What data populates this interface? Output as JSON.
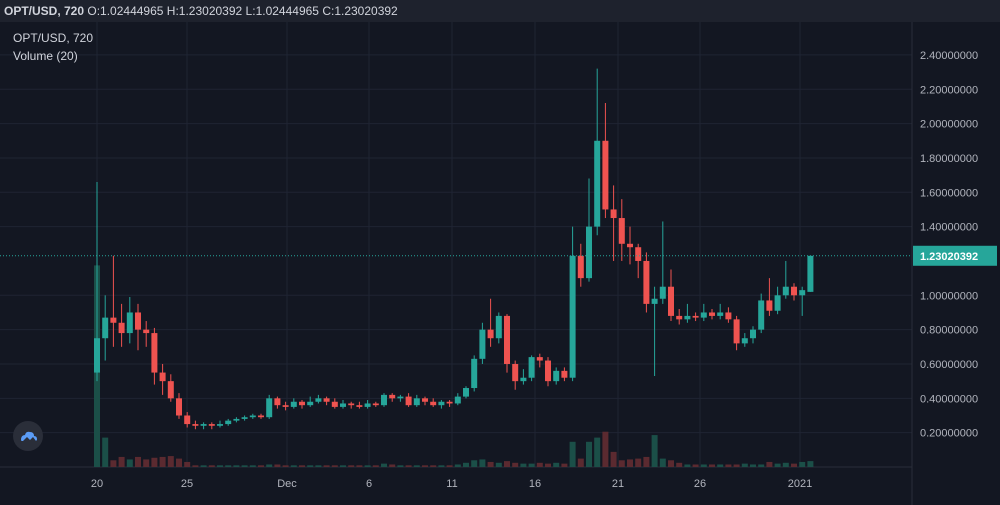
{
  "header": {
    "symbol": "OPT/USD, 720",
    "o_label": "O:",
    "o_value": "1.02444965",
    "h_label": "H:",
    "h_value": "1.23020392",
    "l_label": "L:",
    "l_value": "1.02444965",
    "c_label": "C:",
    "c_value": "1.23020392"
  },
  "legend": {
    "title": "OPT/USD, 720",
    "volume": "Volume (20)"
  },
  "price_tag": "1.23020392",
  "colors": {
    "up": "#26a69a",
    "down": "#ef5350",
    "bg": "#131722",
    "grid": "#1f2433",
    "text": "#b2b5be"
  },
  "chart_data": {
    "type": "candlestick",
    "y_ticks": [
      "2.40000000",
      "2.20000000",
      "2.00000000",
      "1.80000000",
      "1.60000000",
      "1.40000000",
      "1.00000000",
      "0.80000000",
      "0.60000000",
      "0.40000000",
      "0.20000000"
    ],
    "x_ticks": [
      "20",
      "25",
      "Dec",
      "6",
      "11",
      "16",
      "21",
      "26",
      "2021"
    ],
    "ylim": [
      0,
      2.55
    ],
    "last_price": 1.23020392,
    "candles": [
      [
        0.55,
        0.75,
        0.5,
        1.66
      ],
      [
        0.75,
        0.87,
        0.62,
        1.0
      ],
      [
        0.87,
        0.84,
        0.7,
        1.23
      ],
      [
        0.84,
        0.78,
        0.7,
        0.95
      ],
      [
        0.78,
        0.9,
        0.72,
        0.99
      ],
      [
        0.9,
        0.8,
        0.68,
        0.95
      ],
      [
        0.8,
        0.78,
        0.7,
        0.85
      ],
      [
        0.78,
        0.55,
        0.48,
        0.81
      ],
      [
        0.55,
        0.5,
        0.42,
        0.6
      ],
      [
        0.5,
        0.4,
        0.38,
        0.54
      ],
      [
        0.4,
        0.3,
        0.28,
        0.43
      ],
      [
        0.3,
        0.25,
        0.23,
        0.32
      ],
      [
        0.25,
        0.24,
        0.22,
        0.27
      ],
      [
        0.24,
        0.25,
        0.22,
        0.26
      ],
      [
        0.25,
        0.24,
        0.22,
        0.26
      ],
      [
        0.24,
        0.25,
        0.23,
        0.27
      ],
      [
        0.25,
        0.27,
        0.24,
        0.28
      ],
      [
        0.27,
        0.28,
        0.26,
        0.29
      ],
      [
        0.28,
        0.29,
        0.27,
        0.3
      ],
      [
        0.29,
        0.3,
        0.28,
        0.31
      ],
      [
        0.3,
        0.29,
        0.28,
        0.31
      ],
      [
        0.29,
        0.4,
        0.28,
        0.42
      ],
      [
        0.4,
        0.36,
        0.34,
        0.41
      ],
      [
        0.36,
        0.35,
        0.33,
        0.38
      ],
      [
        0.35,
        0.38,
        0.34,
        0.4
      ],
      [
        0.38,
        0.36,
        0.34,
        0.39
      ],
      [
        0.36,
        0.38,
        0.35,
        0.41
      ],
      [
        0.38,
        0.4,
        0.37,
        0.42
      ],
      [
        0.4,
        0.38,
        0.36,
        0.41
      ],
      [
        0.38,
        0.35,
        0.34,
        0.4
      ],
      [
        0.35,
        0.37,
        0.34,
        0.39
      ],
      [
        0.37,
        0.36,
        0.34,
        0.38
      ],
      [
        0.36,
        0.35,
        0.34,
        0.38
      ],
      [
        0.35,
        0.37,
        0.34,
        0.39
      ],
      [
        0.37,
        0.36,
        0.35,
        0.38
      ],
      [
        0.36,
        0.42,
        0.35,
        0.43
      ],
      [
        0.42,
        0.4,
        0.38,
        0.43
      ],
      [
        0.4,
        0.41,
        0.38,
        0.42
      ],
      [
        0.41,
        0.36,
        0.35,
        0.43
      ],
      [
        0.36,
        0.4,
        0.35,
        0.42
      ],
      [
        0.4,
        0.38,
        0.36,
        0.41
      ],
      [
        0.38,
        0.36,
        0.35,
        0.4
      ],
      [
        0.36,
        0.38,
        0.34,
        0.39
      ],
      [
        0.38,
        0.37,
        0.35,
        0.39
      ],
      [
        0.37,
        0.41,
        0.36,
        0.43
      ],
      [
        0.41,
        0.46,
        0.4,
        0.47
      ],
      [
        0.46,
        0.63,
        0.44,
        0.65
      ],
      [
        0.63,
        0.8,
        0.6,
        0.84
      ],
      [
        0.8,
        0.75,
        0.7,
        0.98
      ],
      [
        0.75,
        0.88,
        0.72,
        0.9
      ],
      [
        0.88,
        0.6,
        0.55,
        0.89
      ],
      [
        0.6,
        0.5,
        0.45,
        0.62
      ],
      [
        0.5,
        0.52,
        0.48,
        0.57
      ],
      [
        0.52,
        0.64,
        0.5,
        0.65
      ],
      [
        0.64,
        0.62,
        0.58,
        0.66
      ],
      [
        0.62,
        0.5,
        0.47,
        0.64
      ],
      [
        0.5,
        0.56,
        0.48,
        0.58
      ],
      [
        0.56,
        0.52,
        0.5,
        0.58
      ],
      [
        0.52,
        1.23,
        0.5,
        1.4
      ],
      [
        1.23,
        1.1,
        1.05,
        1.3
      ],
      [
        1.1,
        1.4,
        1.08,
        1.68
      ],
      [
        1.4,
        1.9,
        1.35,
        2.32
      ],
      [
        1.9,
        1.5,
        1.45,
        2.12
      ],
      [
        1.5,
        1.45,
        1.2,
        1.64
      ],
      [
        1.45,
        1.3,
        1.2,
        1.56
      ],
      [
        1.3,
        1.28,
        1.18,
        1.4
      ],
      [
        1.28,
        1.2,
        1.1,
        1.3
      ],
      [
        1.2,
        0.95,
        0.9,
        1.25
      ],
      [
        0.95,
        0.98,
        0.53,
        1.05
      ],
      [
        0.98,
        1.05,
        0.95,
        1.43
      ],
      [
        1.05,
        0.88,
        0.85,
        1.15
      ],
      [
        0.88,
        0.86,
        0.83,
        0.92
      ],
      [
        0.86,
        0.88,
        0.84,
        0.95
      ],
      [
        0.88,
        0.87,
        0.85,
        0.9
      ],
      [
        0.87,
        0.9,
        0.85,
        0.95
      ],
      [
        0.9,
        0.88,
        0.86,
        0.92
      ],
      [
        0.88,
        0.9,
        0.86,
        0.95
      ],
      [
        0.9,
        0.86,
        0.84,
        0.93
      ],
      [
        0.86,
        0.72,
        0.68,
        0.88
      ],
      [
        0.72,
        0.75,
        0.7,
        0.78
      ],
      [
        0.75,
        0.8,
        0.72,
        0.82
      ],
      [
        0.8,
        0.97,
        0.78,
        1.01
      ],
      [
        0.97,
        0.91,
        0.88,
        1.1
      ],
      [
        0.91,
        1.0,
        0.89,
        1.05
      ],
      [
        1.0,
        1.05,
        0.98,
        1.2
      ],
      [
        1.05,
        1.0,
        0.97,
        1.07
      ],
      [
        1.0,
        1.03,
        0.88,
        1.05
      ],
      [
        1.02,
        1.23,
        1.02,
        1.23
      ]
    ],
    "volumes": [
      240,
      35,
      8,
      12,
      9,
      12,
      9,
      11,
      12,
      13,
      10,
      6,
      2,
      2,
      2,
      2,
      2,
      2,
      2,
      2,
      2,
      3,
      3,
      2,
      2,
      2,
      2,
      2,
      2,
      2,
      2,
      2,
      2,
      2,
      2,
      4,
      3,
      2,
      2,
      2,
      2,
      2,
      2,
      2,
      3,
      5,
      8,
      9,
      6,
      5,
      7,
      5,
      4,
      4,
      5,
      4,
      5,
      4,
      30,
      10,
      30,
      35,
      42,
      18,
      8,
      9,
      10,
      12,
      38,
      10,
      8,
      5,
      3,
      3,
      3,
      3,
      3,
      3,
      3,
      4,
      3,
      3,
      6,
      4,
      5,
      4,
      6,
      7
    ]
  }
}
